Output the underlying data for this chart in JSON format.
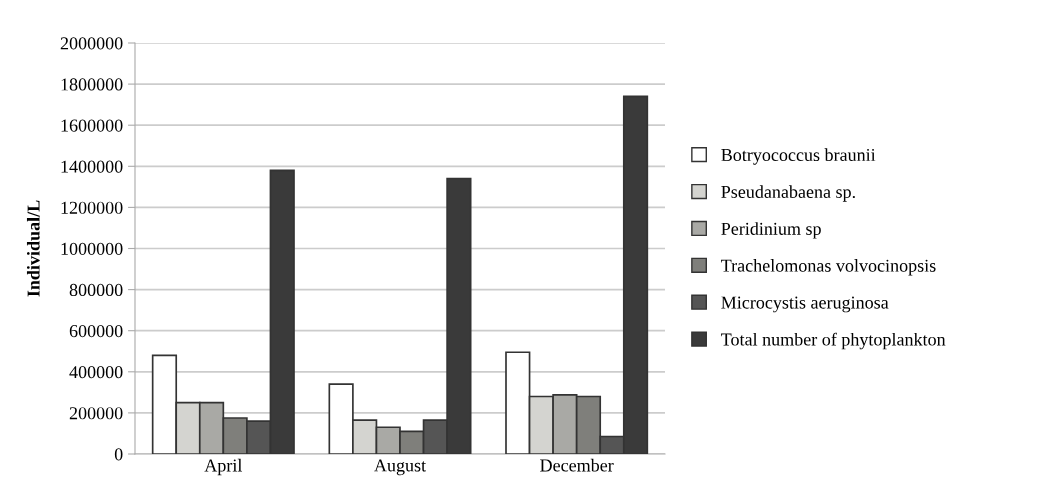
{
  "chart_data": {
    "type": "bar",
    "ylabel": "Individual/L",
    "categories": [
      "April",
      "August",
      "December"
    ],
    "series": [
      {
        "name": "Botryococcus braunii",
        "color": "#ffffff",
        "values": [
          480000,
          340000,
          495000
        ]
      },
      {
        "name": "Pseudanabaena sp.",
        "color": "#d4d4d0",
        "values": [
          250000,
          165000,
          280000
        ]
      },
      {
        "name": "Peridinium sp",
        "color": "#a9a9a5",
        "values": [
          250000,
          130000,
          288000
        ]
      },
      {
        "name": "Trachelomonas volvocinopsis",
        "color": "#7f7f7b",
        "values": [
          175000,
          110000,
          280000
        ]
      },
      {
        "name": "Microcystis aeruginosa",
        "color": "#555555",
        "values": [
          160000,
          165000,
          85000
        ]
      },
      {
        "name": "Total number of phytoplankton",
        "color": "#3a3a3a",
        "values": [
          1380000,
          1340000,
          1740000
        ]
      }
    ],
    "ylim": [
      0,
      2000000
    ],
    "yticks": [
      0,
      200000,
      400000,
      600000,
      800000,
      1000000,
      1200000,
      1400000,
      1600000,
      1800000,
      2000000
    ],
    "grid": "y",
    "legend": "right"
  }
}
